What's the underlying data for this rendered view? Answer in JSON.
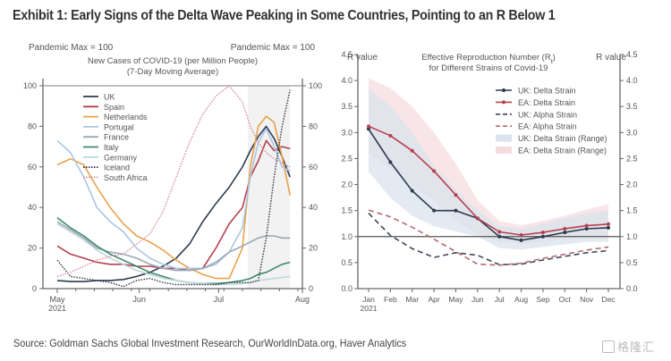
{
  "title": "Exhibit 1: Early Signs of the Delta Wave Peaking in Some Countries, Pointing to an R Below 1",
  "source": "Source: Goldman Sachs Global Investment Research, OurWorldInData.org, Haver Analytics",
  "watermark": "格隆汇",
  "chart_data": [
    {
      "type": "line",
      "title": "New Cases of COVID-19 (per Million People)",
      "subtitle": "(7-Day Moving Average)",
      "ylabel_left": "Pandemic Max = 100",
      "ylabel_right": "Pandemic Max = 100",
      "ylim": [
        0,
        100
      ],
      "yticks": [
        0,
        20,
        40,
        60,
        80,
        100
      ],
      "ytick_labels": [
        "0",
        "20",
        "40",
        "60",
        "80",
        "100"
      ],
      "xlim_days": [
        0,
        92
      ],
      "xticks": [
        {
          "day": 0,
          "label": "May",
          "label2": "2021"
        },
        {
          "day": 31,
          "label": "Jun",
          "label2": ""
        },
        {
          "day": 61,
          "label": "Jul",
          "label2": ""
        },
        {
          "day": 92,
          "label": "Aug",
          "label2": ""
        }
      ],
      "shaded_region_days": [
        72,
        88
      ],
      "legend_position": "top-left",
      "x_days": [
        0,
        5,
        10,
        15,
        20,
        25,
        30,
        35,
        40,
        45,
        50,
        55,
        60,
        65,
        70,
        73,
        76,
        79,
        82,
        85,
        88
      ],
      "series": [
        {
          "name": "UK",
          "color": "#2e3a4f",
          "dash": "solid",
          "values": [
            4,
            3.5,
            3.5,
            4,
            4,
            4.5,
            6,
            8,
            11,
            15,
            22,
            33,
            42,
            50,
            60,
            68,
            75,
            80,
            74,
            65,
            55
          ]
        },
        {
          "name": "Spain",
          "color": "#b5404f",
          "dash": "solid",
          "values": [
            21,
            17,
            15,
            13,
            12,
            12,
            11,
            11,
            10,
            10,
            9,
            10,
            20,
            32,
            40,
            55,
            63,
            73,
            68,
            70,
            69
          ]
        },
        {
          "name": "Netherlands",
          "color": "#e8a24a",
          "dash": "solid",
          "values": [
            61,
            64,
            61,
            50,
            40,
            32,
            26,
            23,
            19,
            14,
            10,
            7,
            5,
            5,
            20,
            60,
            80,
            85,
            82,
            65,
            46
          ]
        },
        {
          "name": "Portugal",
          "color": "#a9c6e3",
          "dash": "solid",
          "values": [
            73,
            67,
            55,
            40,
            33,
            28,
            20,
            15,
            12,
            10,
            10,
            10,
            12,
            18,
            30,
            55,
            72,
            79,
            70,
            60,
            58
          ]
        },
        {
          "name": "France",
          "color": "#9aa7b8",
          "dash": "solid",
          "values": [
            33,
            29,
            25,
            20,
            18,
            17,
            15,
            12,
            10,
            9,
            9,
            10,
            13,
            18,
            21,
            23,
            25,
            26,
            26,
            25,
            25
          ]
        },
        {
          "name": "Italy",
          "color": "#3f8a6a",
          "dash": "solid",
          "values": [
            35,
            30,
            26,
            21,
            17,
            14,
            11,
            8,
            6,
            4,
            3,
            2.5,
            2.5,
            3,
            4,
            5,
            7,
            8,
            10,
            12,
            13
          ]
        },
        {
          "name": "Germany",
          "color": "#bfd8dc",
          "dash": "solid",
          "values": [
            32,
            28,
            24,
            19,
            15,
            12,
            9,
            7,
            5,
            4,
            3,
            2.5,
            2,
            2,
            2.5,
            3,
            4,
            4.5,
            5,
            5.5,
            6
          ]
        },
        {
          "name": "Iceland",
          "color": "#2b3545",
          "dash": "dotted",
          "values": [
            14,
            6,
            5,
            4,
            3,
            1,
            4,
            5,
            3,
            2,
            2,
            2,
            2,
            3,
            3,
            3,
            4,
            25,
            55,
            80,
            98
          ]
        },
        {
          "name": "South Africa",
          "color": "#d98a9a",
          "dash": "dotted",
          "values": [
            6,
            8,
            11,
            14,
            16,
            17,
            22,
            27,
            38,
            55,
            72,
            86,
            95,
            100,
            92,
            80,
            72,
            67,
            64,
            62,
            60
          ]
        }
      ]
    },
    {
      "type": "line",
      "title": "Effective Reproduction Number (R_t)",
      "subtitle": "for Different Strains of Covid-19",
      "ylabel_left": "R value",
      "ylabel_right": "R value",
      "ylim": [
        0,
        4.5
      ],
      "yticks": [
        0,
        0.5,
        1.0,
        1.5,
        2.0,
        2.5,
        3.0,
        3.5,
        4.0,
        4.5
      ],
      "ytick_labels": [
        "0.0",
        "0.5",
        "1.0",
        "1.5",
        "2.0",
        "2.5",
        "3.0",
        "3.5",
        "4.0",
        "4.5"
      ],
      "categories": [
        "Jan",
        "Feb",
        "Mar",
        "Apr",
        "May",
        "Jun",
        "Jul",
        "Aug",
        "Sep",
        "Oct",
        "Nov",
        "Dec"
      ],
      "first_category_sublabel": "2021",
      "reference_line": 1.0,
      "legend_position": "top-right",
      "series": [
        {
          "name": "UK: Delta Strain",
          "color": "#2e3a4f",
          "style": "line-marker",
          "values": [
            3.07,
            2.43,
            1.88,
            1.5,
            1.5,
            1.35,
            1.0,
            0.93,
            1.0,
            1.08,
            1.15,
            1.17
          ]
        },
        {
          "name": "EA: Delta Strain",
          "color": "#b5404f",
          "style": "line-marker",
          "values": [
            3.12,
            2.94,
            2.65,
            2.26,
            1.8,
            1.35,
            1.09,
            1.03,
            1.08,
            1.15,
            1.21,
            1.24
          ]
        },
        {
          "name": "UK: Alpha Strain",
          "color": "#3d4756",
          "style": "dashed",
          "values": [
            1.45,
            1.02,
            0.77,
            0.6,
            0.69,
            0.64,
            0.46,
            0.47,
            0.55,
            0.62,
            0.69,
            0.73
          ]
        },
        {
          "name": "EA: Alpha Strain",
          "color": "#b56a72",
          "style": "dashed",
          "values": [
            1.51,
            1.38,
            1.18,
            0.95,
            0.71,
            0.47,
            0.45,
            0.49,
            0.58,
            0.66,
            0.74,
            0.8
          ]
        },
        {
          "name": "UK: Delta Strain (Range)",
          "color": "#dbe3ec",
          "style": "band",
          "low": [
            2.25,
            1.75,
            1.4,
            1.2,
            1.1,
            1.0,
            0.78,
            0.75,
            0.8,
            0.85,
            0.9,
            0.9
          ],
          "high": [
            3.85,
            3.5,
            3.0,
            2.35,
            1.9,
            1.5,
            1.2,
            1.15,
            1.25,
            1.35,
            1.45,
            1.5
          ]
        },
        {
          "name": "EA: Delta Strain (Range)",
          "color": "#f6dcdf",
          "style": "band",
          "low": [
            2.6,
            2.3,
            2.0,
            1.7,
            1.3,
            1.05,
            0.9,
            0.85,
            0.9,
            0.95,
            1.0,
            1.0
          ],
          "high": [
            4.05,
            3.85,
            3.5,
            3.0,
            2.4,
            1.7,
            1.3,
            1.22,
            1.3,
            1.4,
            1.52,
            1.62
          ]
        }
      ]
    }
  ]
}
